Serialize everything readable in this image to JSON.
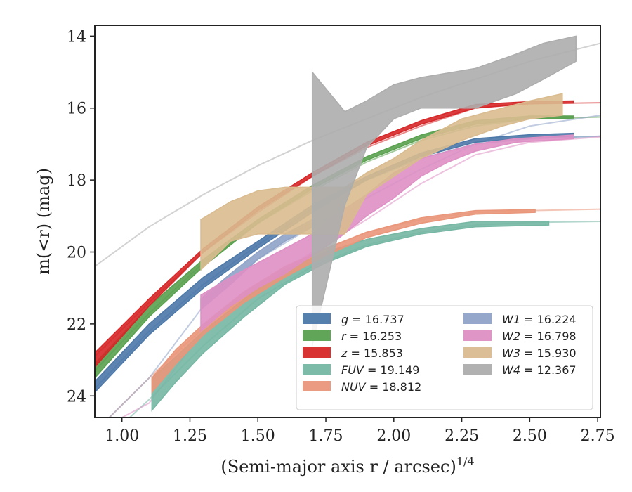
{
  "chart_data": {
    "type": "line",
    "title": "",
    "xlabel": "(Semi-major axis r / arcsec)",
    "xlabel_exponent": "1/4",
    "ylabel": "m(<r) (mag)",
    "xlim": [
      0.9,
      2.76
    ],
    "ylim": [
      24.6,
      13.7
    ],
    "y_inverted": true,
    "xticks": [
      1.0,
      1.25,
      1.5,
      1.75,
      2.0,
      2.25,
      2.5,
      2.75
    ],
    "xtick_labels": [
      "1.00",
      "1.25",
      "1.50",
      "1.75",
      "2.00",
      "2.25",
      "2.50",
      "2.75"
    ],
    "yticks": [
      14,
      16,
      18,
      20,
      22,
      24
    ],
    "ytick_labels": [
      "14",
      "16",
      "18",
      "20",
      "22",
      "24"
    ],
    "grid": false,
    "legend_position": "lower-right",
    "series": [
      {
        "name": "g",
        "legend_label": "g = 16.737",
        "color": "#4c78a8",
        "model": [
          [
            0.9,
            23.8
          ],
          [
            1.1,
            22.2
          ],
          [
            1.3,
            20.9
          ],
          [
            1.5,
            19.8
          ],
          [
            1.7,
            18.8
          ],
          [
            1.9,
            18.0
          ],
          [
            2.1,
            17.4
          ],
          [
            2.3,
            17.0
          ],
          [
            2.5,
            16.85
          ],
          [
            2.76,
            16.78
          ]
        ],
        "band": [
          [
            0.9,
            23.9,
            23.6
          ],
          [
            1.1,
            22.3,
            22.0
          ],
          [
            1.3,
            21.0,
            20.7
          ],
          [
            1.5,
            19.9,
            19.7
          ],
          [
            1.7,
            18.9,
            18.7
          ],
          [
            1.9,
            18.0,
            17.9
          ],
          [
            2.1,
            17.35,
            17.25
          ],
          [
            2.3,
            16.95,
            16.85
          ],
          [
            2.5,
            16.82,
            16.74
          ],
          [
            2.66,
            16.78,
            16.7
          ]
        ]
      },
      {
        "name": "r",
        "legend_label": "r = 16.253",
        "color": "#59a14f",
        "model": [
          [
            0.9,
            23.3
          ],
          [
            1.1,
            21.7
          ],
          [
            1.3,
            20.3
          ],
          [
            1.5,
            19.2
          ],
          [
            1.7,
            18.3
          ],
          [
            1.9,
            17.5
          ],
          [
            2.1,
            16.9
          ],
          [
            2.3,
            16.5
          ],
          [
            2.5,
            16.3
          ],
          [
            2.76,
            16.25
          ]
        ],
        "band": [
          [
            0.9,
            23.5,
            23.1
          ],
          [
            1.1,
            21.8,
            21.5
          ],
          [
            1.3,
            20.4,
            20.2
          ],
          [
            1.5,
            19.2,
            19.1
          ],
          [
            1.7,
            18.25,
            18.15
          ],
          [
            1.9,
            17.45,
            17.35
          ],
          [
            2.1,
            16.85,
            16.75
          ],
          [
            2.3,
            16.45,
            16.35
          ],
          [
            2.5,
            16.3,
            16.22
          ],
          [
            2.66,
            16.28,
            16.22
          ]
        ]
      },
      {
        "name": "z",
        "legend_label": "z = 15.853",
        "color": "#d62728",
        "model": [
          [
            0.9,
            22.9
          ],
          [
            1.1,
            21.4
          ],
          [
            1.3,
            20.0
          ],
          [
            1.5,
            18.9
          ],
          [
            1.7,
            17.9
          ],
          [
            1.9,
            17.1
          ],
          [
            2.1,
            16.5
          ],
          [
            2.3,
            16.0
          ],
          [
            2.5,
            15.88
          ],
          [
            2.76,
            15.85
          ]
        ],
        "band": [
          [
            0.9,
            23.2,
            22.8
          ],
          [
            1.1,
            21.5,
            21.3
          ],
          [
            1.3,
            20.0,
            19.9
          ],
          [
            1.5,
            18.85,
            18.75
          ],
          [
            1.7,
            17.9,
            17.8
          ],
          [
            1.9,
            17.05,
            16.95
          ],
          [
            2.1,
            16.45,
            16.35
          ],
          [
            2.3,
            16.0,
            15.9
          ],
          [
            2.5,
            15.88,
            15.82
          ],
          [
            2.66,
            15.86,
            15.8
          ]
        ]
      },
      {
        "name": "FUV",
        "legend_label": "FUV = 19.149",
        "color": "#76b7a4",
        "model": [
          [
            0.9,
            25.5
          ],
          [
            1.1,
            24.1
          ],
          [
            1.3,
            22.6
          ],
          [
            1.5,
            21.3
          ],
          [
            1.7,
            20.4
          ],
          [
            1.9,
            19.8
          ],
          [
            2.1,
            19.45
          ],
          [
            2.3,
            19.25
          ],
          [
            2.5,
            19.18
          ],
          [
            2.76,
            19.15
          ]
        ],
        "band": [
          [
            1.11,
            24.4,
            23.5
          ],
          [
            1.2,
            23.6,
            22.9
          ],
          [
            1.3,
            22.8,
            22.2
          ],
          [
            1.45,
            21.8,
            21.3
          ],
          [
            1.6,
            20.9,
            20.5
          ],
          [
            1.75,
            20.3,
            20.0
          ],
          [
            1.9,
            19.85,
            19.65
          ],
          [
            2.1,
            19.5,
            19.35
          ],
          [
            2.3,
            19.3,
            19.15
          ],
          [
            2.57,
            19.25,
            19.15
          ]
        ]
      },
      {
        "name": "NUV",
        "legend_label": "NUV = 18.812",
        "color": "#e9967a",
        "model": [
          [
            0.9,
            25.0
          ],
          [
            1.1,
            23.5
          ],
          [
            1.3,
            22.1
          ],
          [
            1.5,
            20.95
          ],
          [
            1.7,
            20.05
          ],
          [
            1.9,
            19.45
          ],
          [
            2.1,
            19.1
          ],
          [
            2.3,
            18.9
          ],
          [
            2.5,
            18.85
          ],
          [
            2.76,
            18.81
          ]
        ],
        "band": [
          [
            1.11,
            23.9,
            23.5
          ],
          [
            1.2,
            23.1,
            22.7
          ],
          [
            1.3,
            22.3,
            22.0
          ],
          [
            1.45,
            21.4,
            21.1
          ],
          [
            1.6,
            20.7,
            20.4
          ],
          [
            1.75,
            20.1,
            19.9
          ],
          [
            1.9,
            19.6,
            19.45
          ],
          [
            2.1,
            19.2,
            19.05
          ],
          [
            2.3,
            18.95,
            18.85
          ],
          [
            2.52,
            18.9,
            18.82
          ]
        ]
      },
      {
        "name": "W1",
        "legend_label": "W1 = 16.224",
        "color": "#8fa3c8",
        "model": [
          [
            0.9,
            25.0
          ],
          [
            1.1,
            23.5
          ],
          [
            1.3,
            21.5
          ],
          [
            1.5,
            20.2
          ],
          [
            1.7,
            19.3
          ],
          [
            1.9,
            18.5
          ],
          [
            2.1,
            17.7
          ],
          [
            2.3,
            17.0
          ],
          [
            2.5,
            16.5
          ],
          [
            2.76,
            16.2
          ]
        ],
        "band": [
          [
            1.29,
            21.6,
            21.3
          ],
          [
            1.4,
            20.9,
            20.6
          ],
          [
            1.5,
            20.2,
            20.0
          ],
          [
            1.6,
            19.7,
            19.5
          ],
          [
            1.7,
            19.3,
            19.1
          ]
        ]
      },
      {
        "name": "W2",
        "legend_label": "W2 = 16.798",
        "color": "#de8fc4",
        "model": [
          [
            0.9,
            25.0
          ],
          [
            1.1,
            24.2
          ],
          [
            1.3,
            22.2
          ],
          [
            1.5,
            21.0
          ],
          [
            1.7,
            20.0
          ],
          [
            1.9,
            19.1
          ],
          [
            2.1,
            18.1
          ],
          [
            2.3,
            17.3
          ],
          [
            2.5,
            16.95
          ],
          [
            2.76,
            16.8
          ]
        ],
        "band": [
          [
            1.29,
            22.2,
            21.2
          ],
          [
            1.4,
            21.5,
            20.7
          ],
          [
            1.5,
            21.0,
            20.3
          ],
          [
            1.6,
            20.6,
            19.9
          ],
          [
            1.7,
            20.1,
            19.5
          ],
          [
            1.8,
            19.6,
            18.9
          ],
          [
            1.9,
            19.0,
            18.4
          ],
          [
            2.0,
            18.5,
            17.8
          ],
          [
            2.1,
            17.9,
            17.4
          ],
          [
            2.2,
            17.5,
            17.2
          ],
          [
            2.3,
            17.2,
            17.0
          ],
          [
            2.45,
            16.95,
            16.85
          ],
          [
            2.66,
            16.85,
            16.75
          ]
        ]
      },
      {
        "name": "W3",
        "legend_label": "W3 = 15.930",
        "color": "#d9bb8f",
        "model": [],
        "band": [
          [
            1.29,
            20.5,
            19.1
          ],
          [
            1.4,
            19.7,
            18.6
          ],
          [
            1.5,
            19.5,
            18.3
          ],
          [
            1.6,
            19.5,
            18.2
          ],
          [
            1.75,
            19.5,
            18.2
          ],
          [
            1.82,
            19.5,
            18.2
          ],
          [
            1.9,
            18.4,
            17.8
          ],
          [
            2.0,
            17.9,
            17.4
          ],
          [
            2.1,
            17.4,
            16.9
          ],
          [
            2.25,
            16.9,
            16.3
          ],
          [
            2.4,
            16.5,
            16.0
          ],
          [
            2.5,
            16.3,
            15.8
          ],
          [
            2.62,
            16.2,
            15.6
          ]
        ]
      },
      {
        "name": "W4",
        "legend_label": "W4 = 12.367",
        "color": "#adadad",
        "model": [
          [
            0.9,
            20.4
          ],
          [
            1.1,
            19.3
          ],
          [
            1.3,
            18.4
          ],
          [
            1.5,
            17.6
          ],
          [
            1.7,
            16.9
          ],
          [
            1.9,
            16.3
          ],
          [
            2.1,
            15.7
          ],
          [
            2.3,
            15.2
          ],
          [
            2.5,
            14.7
          ],
          [
            2.76,
            14.2
          ]
        ],
        "band": [
          [
            1.7,
            22.6,
            15.0
          ],
          [
            1.82,
            18.7,
            16.1
          ],
          [
            1.9,
            17.1,
            15.8
          ],
          [
            2.0,
            16.3,
            15.35
          ],
          [
            2.1,
            16.0,
            15.15
          ],
          [
            2.3,
            16.0,
            14.9
          ],
          [
            2.45,
            15.6,
            14.5
          ],
          [
            2.55,
            15.2,
            14.2
          ],
          [
            2.67,
            14.7,
            14.0
          ]
        ]
      }
    ]
  }
}
